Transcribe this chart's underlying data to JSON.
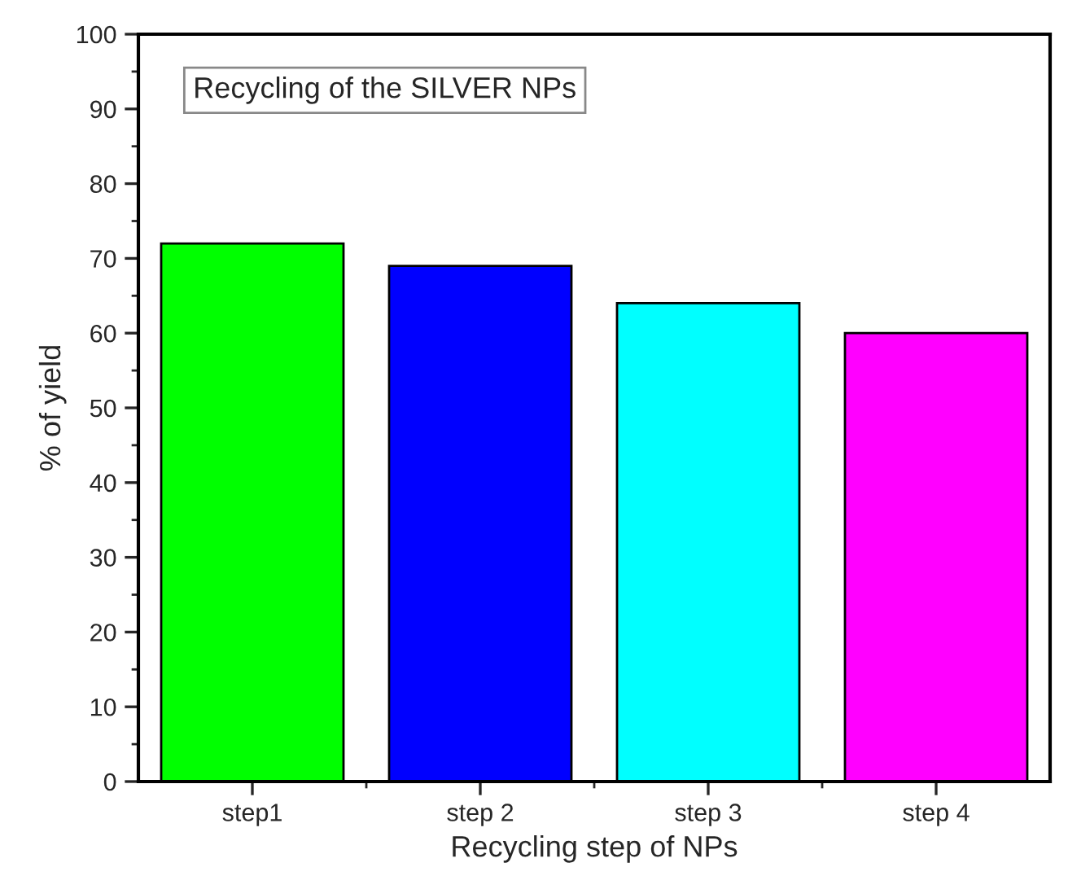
{
  "chart_data": {
    "type": "bar",
    "categories": [
      "step1",
      "step 2",
      "step 3",
      "step 4"
    ],
    "values": [
      72,
      69,
      64,
      60
    ],
    "colors": [
      "#00ff00",
      "#0000ff",
      "#00ffff",
      "#ff00ff"
    ],
    "xlabel": "Recycling step of NPs",
    "ylabel": "% of yield",
    "annotations": [
      "Recycling of the SILVER NPs"
    ],
    "ylim": [
      0,
      100
    ],
    "yticks": [
      0,
      {
        "value": 5,
        "label": null
      },
      10,
      {
        "value": 15,
        "label": null
      },
      20,
      {
        "value": 25,
        "label": null
      },
      30,
      {
        "value": 35,
        "label": null
      },
      40,
      {
        "value": 45,
        "label": null
      },
      50,
      {
        "value": 55,
        "label": null
      },
      60,
      {
        "value": 65,
        "label": null
      },
      70,
      {
        "value": 75,
        "label": null
      },
      80,
      {
        "value": 85,
        "label": null
      },
      90,
      {
        "value": 95,
        "label": null
      },
      100
    ],
    "grid": false,
    "legend": false
  }
}
